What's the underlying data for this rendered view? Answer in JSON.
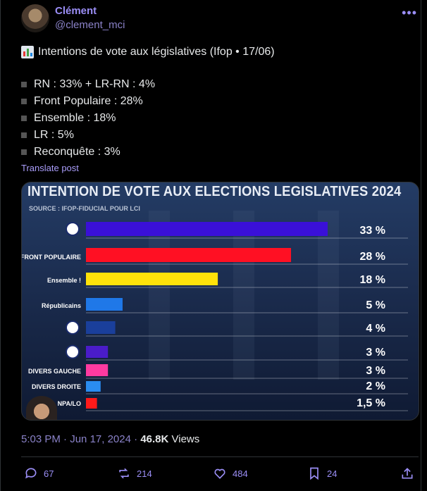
{
  "author": {
    "name": "Clément",
    "handle": "@clement_mci"
  },
  "post": {
    "title": "Intentions de vote aux législatives (Ifop • 17/06)",
    "bullets": [
      "RN : 33% + LR-RN : 4%",
      "Front Populaire : 28%",
      "Ensemble : 18%",
      "LR : 5%",
      "Reconquête : 3%"
    ],
    "translate_label": "Translate post"
  },
  "media": {
    "title": "INTENTION DE VOTE AUX ELECTIONS LEGISLATIVES 2024",
    "source": "SOURCE : IFOP-FIDUCIAL POUR LCI",
    "chart_data": {
      "type": "bar",
      "orientation": "horizontal",
      "title": "INTENTION DE VOTE AUX ELECTIONS LEGISLATIVES 2024",
      "categories": [
        "RN",
        "FRONT POPULAIRE",
        "Ensemble !",
        "LR Républicains",
        "RN-LR",
        "Reconquête",
        "DIVERS GAUCHE",
        "DIVERS DROITE",
        "NPA/LO"
      ],
      "values": [
        33,
        28,
        18,
        5,
        4,
        3,
        3,
        2,
        1.5
      ],
      "value_labels": [
        "33 %",
        "28 %",
        "18 %",
        "5 %",
        "4 %",
        "3 %",
        "3 %",
        "2 %",
        "1,5 %"
      ],
      "category_labels_printed": [
        "",
        "FRONT POPULAIRE",
        "Ensemble !",
        "Républicains",
        "",
        "",
        "DIVERS GAUCHE",
        "DIVERS DROITE",
        "NPA/LO"
      ],
      "colors": [
        "#3a10d8",
        "#ff1023",
        "#ffe20a",
        "#1f78e8",
        "#1a3f9b",
        "#4a1cc9",
        "#ff3aa0",
        "#2a8cf0",
        "#ff1a1a"
      ],
      "grid": false
    }
  },
  "meta": {
    "time": "5:03 PM",
    "date": "Jun 17, 2024",
    "views_count": "46.8K",
    "views_label": "Views"
  },
  "actions": {
    "replies": "67",
    "reposts": "214",
    "likes": "484",
    "bookmarks": "24"
  }
}
